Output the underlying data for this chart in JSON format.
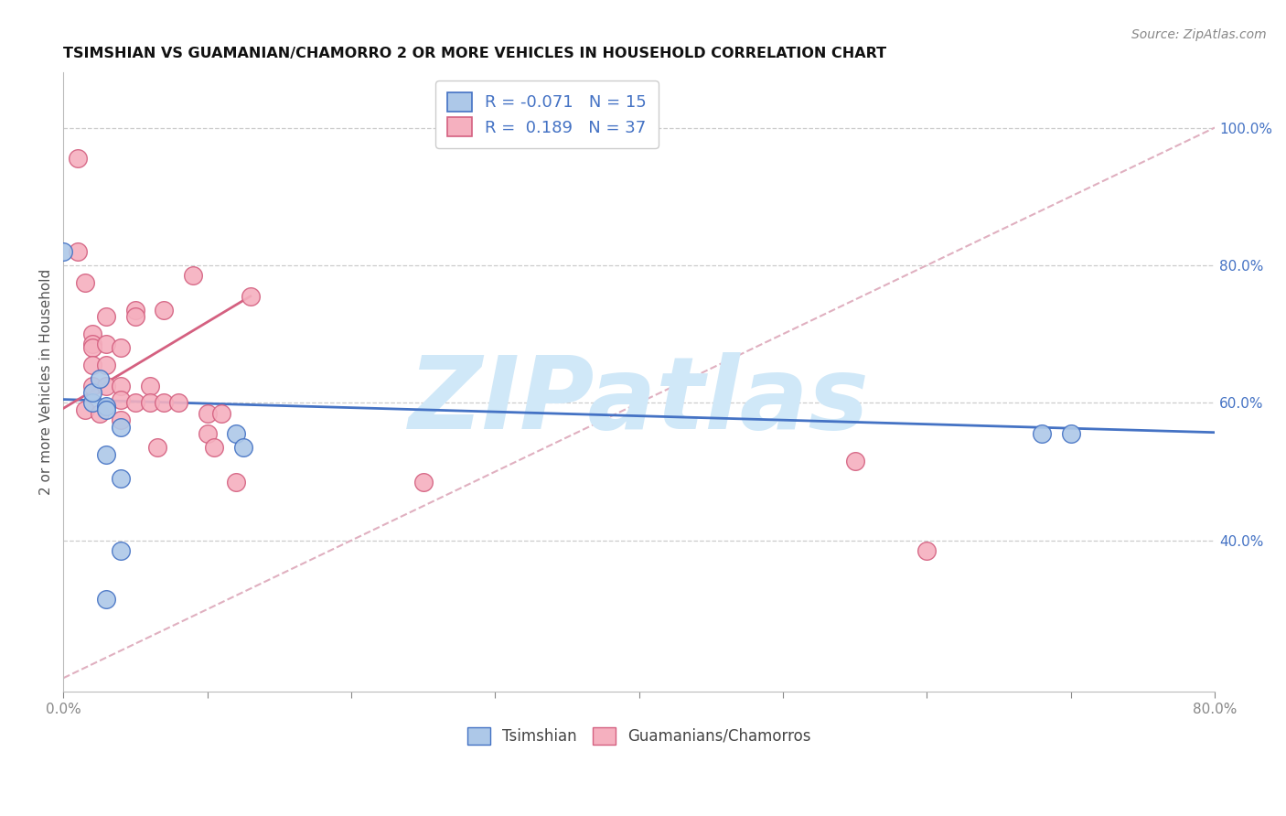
{
  "title": "TSIMSHIAN VS GUAMANIAN/CHAMORRO 2 OR MORE VEHICLES IN HOUSEHOLD CORRELATION CHART",
  "source": "Source: ZipAtlas.com",
  "ylabel": "2 or more Vehicles in Household",
  "xlim": [
    0.0,
    0.8
  ],
  "ylim": [
    0.18,
    1.08
  ],
  "xticks": [
    0.0,
    0.1,
    0.2,
    0.3,
    0.4,
    0.5,
    0.6,
    0.7,
    0.8
  ],
  "xticklabels": [
    "0.0%",
    "",
    "",
    "",
    "",
    "",
    "",
    "",
    "80.0%"
  ],
  "yticks_right": [
    0.4,
    0.6,
    0.8,
    1.0
  ],
  "yticklabels_right": [
    "40.0%",
    "60.0%",
    "80.0%",
    "100.0%"
  ],
  "grid_yticks": [
    0.4,
    0.6,
    0.8,
    1.0
  ],
  "legend_R_blue": "-0.071",
  "legend_N_blue": "15",
  "legend_R_pink": "0.189",
  "legend_N_pink": "37",
  "blue_scatter_color": "#adc8e8",
  "pink_scatter_color": "#f5b0bf",
  "blue_line_color": "#4472c4",
  "pink_line_color": "#d46080",
  "diagonal_color": "#e0b0c0",
  "watermark_color": "#d0e8f8",
  "tsimshian_x": [
    0.0,
    0.02,
    0.02,
    0.025,
    0.03,
    0.03,
    0.03,
    0.04,
    0.04,
    0.04,
    0.12,
    0.125,
    0.68,
    0.7,
    0.03
  ],
  "tsimshian_y": [
    0.82,
    0.6,
    0.615,
    0.635,
    0.595,
    0.59,
    0.525,
    0.49,
    0.565,
    0.385,
    0.555,
    0.535,
    0.555,
    0.555,
    0.315
  ],
  "guamanian_x": [
    0.01,
    0.01,
    0.015,
    0.015,
    0.02,
    0.02,
    0.02,
    0.02,
    0.02,
    0.025,
    0.03,
    0.03,
    0.03,
    0.03,
    0.04,
    0.04,
    0.04,
    0.04,
    0.05,
    0.05,
    0.05,
    0.06,
    0.06,
    0.065,
    0.07,
    0.07,
    0.08,
    0.09,
    0.1,
    0.1,
    0.105,
    0.11,
    0.12,
    0.13,
    0.25,
    0.55,
    0.6
  ],
  "guamanian_y": [
    0.955,
    0.82,
    0.775,
    0.59,
    0.7,
    0.685,
    0.68,
    0.655,
    0.625,
    0.585,
    0.725,
    0.685,
    0.655,
    0.625,
    0.68,
    0.625,
    0.605,
    0.575,
    0.735,
    0.725,
    0.6,
    0.625,
    0.6,
    0.535,
    0.735,
    0.6,
    0.6,
    0.785,
    0.585,
    0.555,
    0.535,
    0.585,
    0.485,
    0.755,
    0.485,
    0.515,
    0.385
  ],
  "blue_line_x": [
    0.0,
    0.8
  ],
  "blue_line_y": [
    0.605,
    0.557
  ],
  "pink_line_x": [
    0.0,
    0.13
  ],
  "pink_line_y": [
    0.592,
    0.755
  ],
  "diag_line_x": [
    0.0,
    0.8
  ],
  "diag_line_y": [
    0.2,
    1.0
  ]
}
